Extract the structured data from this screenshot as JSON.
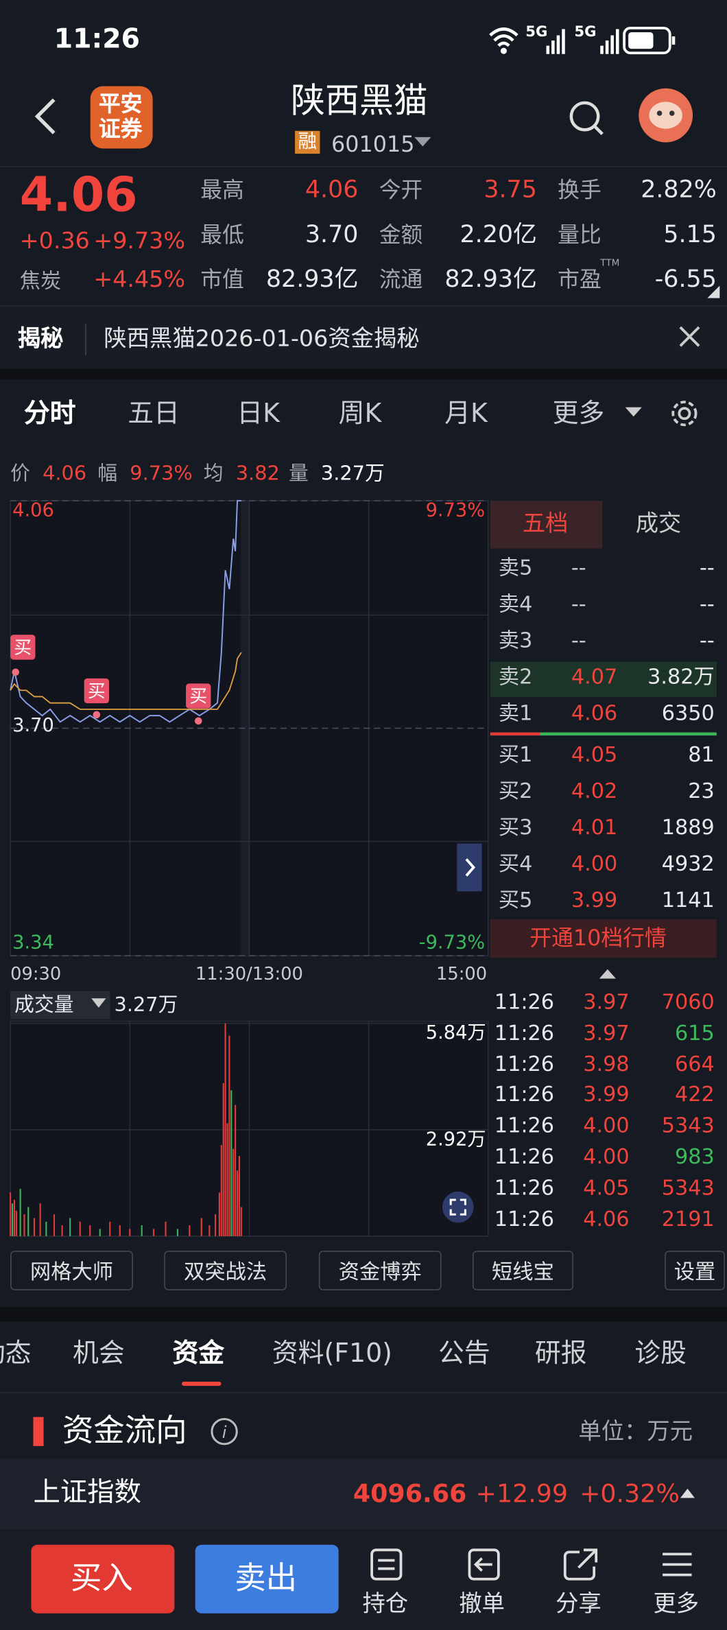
{
  "status_bar": {
    "time": "11:26",
    "network": [
      "5G",
      "5G"
    ]
  },
  "header": {
    "logo": [
      "平安",
      "证券"
    ],
    "name": "陕西黑猫",
    "tag": "融",
    "code": "601015"
  },
  "quote": {
    "price": "4.06",
    "change": "+0.36",
    "change_pct": "+9.73%",
    "sector": "焦炭",
    "sector_pct": "+4.45%",
    "stats": [
      [
        "最高",
        "4.06"
      ],
      [
        "今开",
        "3.75"
      ],
      [
        "换手",
        "2.82%"
      ],
      [
        "最低",
        "3.70"
      ],
      [
        "金额",
        "2.20亿"
      ],
      [
        "量比",
        "5.15"
      ],
      [
        "市值",
        "82.93亿"
      ],
      [
        "流通",
        "82.93亿"
      ],
      [
        "市盈",
        "-6.55"
      ]
    ],
    "pe_note": "TTM"
  },
  "notice": {
    "label": "揭秘",
    "text": "陕西黑猫2026-01-06资金揭秘"
  },
  "period_tabs": [
    "分时",
    "五日",
    "日K",
    "周K",
    "月K",
    "更多"
  ],
  "info_bar": [
    [
      "价",
      "4.06"
    ],
    [
      "幅",
      "9.73%"
    ],
    [
      "均",
      "3.82"
    ],
    [
      "量",
      "3.27万"
    ]
  ],
  "chart_data": [
    {
      "type": "line",
      "xlim": [
        0,
        240
      ],
      "xticks": [
        {
          "value": 0,
          "label": "09:30"
        },
        {
          "value": 120,
          "label": "11:30/13:00"
        },
        {
          "value": 240,
          "label": "15:00"
        }
      ],
      "ylim": [
        3.34,
        4.06
      ],
      "yticks": [
        4.06,
        {
          "value": 3.7,
          "label": "3.70"
        },
        3.34
      ],
      "y2lim": [
        -9.73,
        9.73
      ],
      "y2ticks": [
        {
          "value": 9.73,
          "label": "9.73%"
        },
        {
          "value": -9.73,
          "label": "-9.73%"
        }
      ],
      "annotations": [
        "买",
        "买",
        "买"
      ],
      "x": [
        0,
        2,
        5,
        8,
        12,
        16,
        20,
        25,
        30,
        35,
        40,
        45,
        50,
        55,
        60,
        65,
        70,
        75,
        80,
        85,
        90,
        95,
        100,
        104,
        106,
        108,
        110,
        112,
        113,
        114,
        116
      ],
      "series": [
        {
          "color": "#8a9ee8",
          "values": [
            3.76,
            3.79,
            3.75,
            3.74,
            3.73,
            3.72,
            3.73,
            3.71,
            3.72,
            3.71,
            3.72,
            3.71,
            3.72,
            3.71,
            3.72,
            3.71,
            3.72,
            3.72,
            3.71,
            3.72,
            3.73,
            3.72,
            3.73,
            3.74,
            3.82,
            3.95,
            3.92,
            4.0,
            3.98,
            4.06,
            4.06
          ]
        },
        {
          "color": "#e0a040",
          "values": [
            3.76,
            3.77,
            3.76,
            3.76,
            3.75,
            3.75,
            3.74,
            3.74,
            3.74,
            3.73,
            3.73,
            3.73,
            3.73,
            3.73,
            3.73,
            3.73,
            3.73,
            3.73,
            3.73,
            3.73,
            3.73,
            3.73,
            3.73,
            3.73,
            3.74,
            3.75,
            3.76,
            3.78,
            3.79,
            3.81,
            3.82
          ]
        }
      ]
    },
    {
      "type": "bar",
      "title": "成交量",
      "subtitle": "3.27万",
      "xlim": [
        0,
        240
      ],
      "ylim": [
        0,
        5.84
      ],
      "yticks": [
        {
          "value": 5.84,
          "label": "5.84万"
        },
        {
          "value": 2.92,
          "label": "2.92万"
        }
      ],
      "x": [
        0,
        1,
        2,
        3,
        5,
        7,
        9,
        12,
        15,
        18,
        22,
        26,
        30,
        35,
        40,
        45,
        50,
        55,
        60,
        66,
        72,
        78,
        84,
        90,
        96,
        100,
        103,
        105,
        106,
        107,
        108,
        109,
        110,
        111,
        112,
        113,
        114,
        115,
        116
      ],
      "values": [
        1.2,
        0.9,
        1.0,
        0.7,
        1.3,
        0.6,
        0.8,
        0.5,
        0.9,
        0.4,
        0.6,
        0.3,
        0.5,
        0.4,
        0.3,
        0.2,
        0.4,
        0.3,
        0.2,
        0.3,
        0.2,
        0.4,
        0.2,
        0.3,
        0.5,
        0.3,
        0.6,
        1.2,
        2.5,
        4.2,
        5.84,
        3.1,
        5.5,
        4.0,
        2.4,
        3.6,
        1.8,
        2.2,
        0.8
      ],
      "colors": [
        "#e03c3c",
        "#3cb35a",
        "#e03c3c",
        "#e03c3c",
        "#3cb35a",
        "#e03c3c",
        "#3cb35a",
        "#e03c3c",
        "#e03c3c",
        "#3cb35a",
        "#e03c3c",
        "#e03c3c",
        "#3cb35a",
        "#e03c3c",
        "#e03c3c",
        "#3cb35a",
        "#e03c3c",
        "#e03c3c",
        "#e03c3c",
        "#3cb35a",
        "#e03c3c",
        "#e03c3c",
        "#3cb35a",
        "#e03c3c",
        "#e03c3c",
        "#e03c3c",
        "#e03c3c",
        "#e03c3c",
        "#e03c3c",
        "#e03c3c",
        "#e03c3c",
        "#e03c3c",
        "#e03c3c",
        "#3cb35a",
        "#e03c3c",
        "#e03c3c",
        "#e03c3c",
        "#e03c3c",
        "#e03c3c"
      ]
    }
  ],
  "order_book": {
    "tabs": [
      "五档",
      "成交"
    ],
    "asks": [
      [
        "卖5",
        "--",
        "--"
      ],
      [
        "卖4",
        "--",
        "--"
      ],
      [
        "卖3",
        "--",
        "--"
      ],
      [
        "卖2",
        "4.07",
        "3.82万"
      ],
      [
        "卖1",
        "4.06",
        "6350"
      ]
    ],
    "bids": [
      [
        "买1",
        "4.05",
        "81"
      ],
      [
        "买2",
        "4.02",
        "23"
      ],
      [
        "买3",
        "4.01",
        "1889"
      ],
      [
        "买4",
        "4.00",
        "4932"
      ],
      [
        "买5",
        "3.99",
        "1141"
      ]
    ],
    "upgrade": "开通10档行情"
  },
  "trades": {
    "rows": [
      [
        "11:26",
        "3.97",
        "7060"
      ],
      [
        "11:26",
        "3.97",
        "615"
      ],
      [
        "11:26",
        "3.98",
        "664"
      ],
      [
        "11:26",
        "3.99",
        "422"
      ],
      [
        "11:26",
        "4.00",
        "5343"
      ],
      [
        "11:26",
        "4.00",
        "983"
      ],
      [
        "11:26",
        "4.05",
        "5343"
      ],
      [
        "11:26",
        "4.06",
        "2191"
      ]
    ],
    "volume_colors": [
      "#f0443c",
      "#3cba5c",
      "#f0443c",
      "#f0443c",
      "#f0443c",
      "#3cba5c",
      "#f0443c",
      "#f0443c"
    ]
  },
  "tools": [
    "网格大师",
    "双突战法",
    "资金博弈",
    "短线宝",
    "设置"
  ],
  "section_tabs": [
    "动态",
    "机会",
    "资金",
    "资料(F10)",
    "公告",
    "研报",
    "诊股"
  ],
  "fund_flow": {
    "title": "资金流向",
    "unit": "单位：万元"
  },
  "index_bar": {
    "name": "上证指数",
    "value": "4096.66",
    "change": "+12.99",
    "change_pct": "+0.32%"
  },
  "bottom_bar": {
    "buy": "买入",
    "sell": "卖出",
    "actions": [
      "持仓",
      "撤单",
      "分享",
      "更多"
    ]
  }
}
